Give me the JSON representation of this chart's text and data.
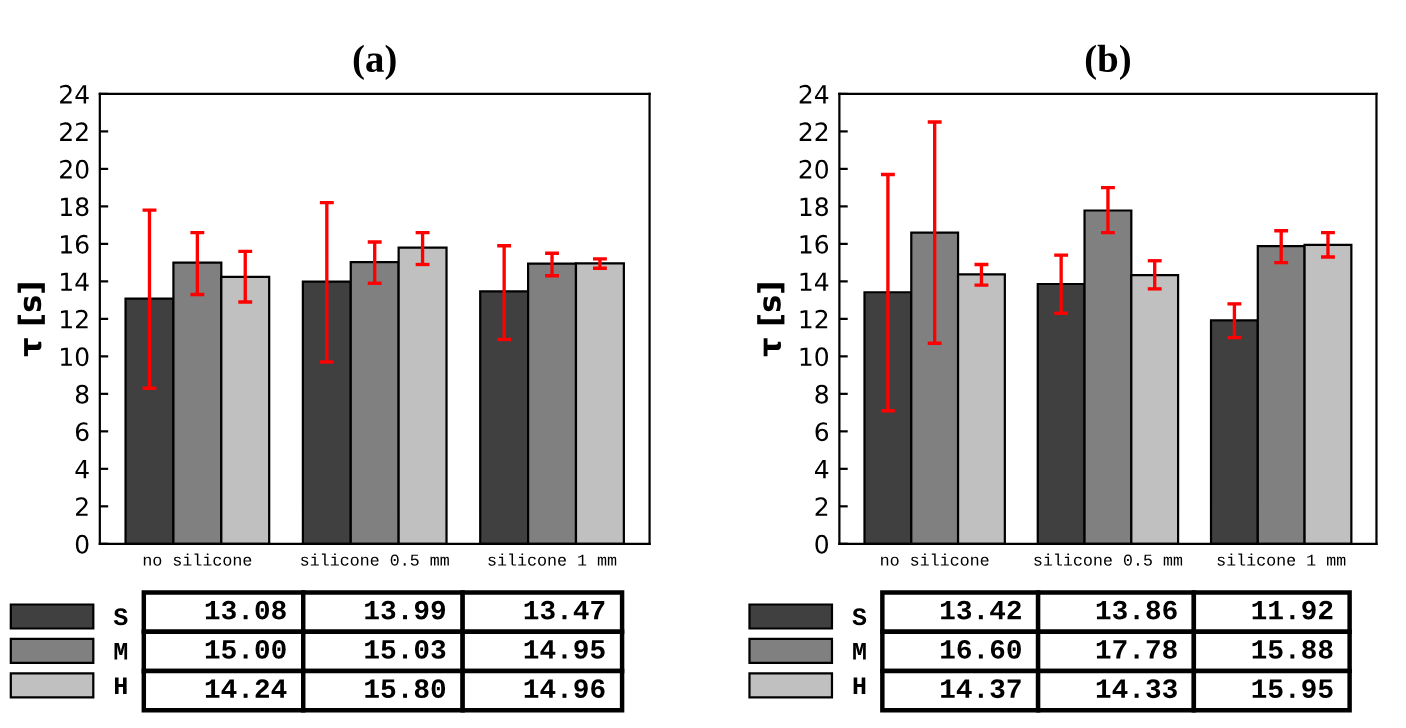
{
  "chart_data": [
    {
      "type": "bar",
      "title": "(a)",
      "ylabel": "τ [s]",
      "categories": [
        "no silicone",
        "silicone 0.5 mm",
        "silicone 1 mm"
      ],
      "series": [
        {
          "name": "S",
          "color": "#404040",
          "values": [
            13.08,
            13.99,
            13.47
          ],
          "value_labels": [
            "13.08",
            "13.99",
            "13.47"
          ],
          "errors": [
            [
              8.3,
              17.8
            ],
            [
              9.7,
              18.2
            ],
            [
              10.9,
              15.9
            ]
          ]
        },
        {
          "name": "M",
          "color": "#808080",
          "values": [
            15.0,
            15.03,
            14.95
          ],
          "value_labels": [
            "15.00",
            "15.03",
            "14.95"
          ],
          "errors": [
            [
              13.3,
              16.6
            ],
            [
              13.9,
              16.1
            ],
            [
              14.3,
              15.5
            ]
          ]
        },
        {
          "name": "H",
          "color": "#c0c0c0",
          "values": [
            14.24,
            15.8,
            14.96
          ],
          "value_labels": [
            "14.24",
            "15.80",
            "14.96"
          ],
          "errors": [
            [
              12.9,
              15.6
            ],
            [
              14.9,
              16.6
            ],
            [
              14.7,
              15.2
            ]
          ]
        }
      ],
      "ylim": [
        0,
        24
      ],
      "yticks": [
        0,
        2,
        4,
        6,
        8,
        10,
        12,
        14,
        16,
        18,
        20,
        22,
        24
      ],
      "legend": "bottom left",
      "grid": false
    },
    {
      "type": "bar",
      "title": "(b)",
      "ylabel": "τ [s]",
      "categories": [
        "no silicone",
        "silicone 0.5 mm",
        "silicone 1 mm"
      ],
      "series": [
        {
          "name": "S",
          "color": "#404040",
          "values": [
            13.42,
            13.86,
            11.92
          ],
          "value_labels": [
            "13.42",
            "13.86",
            "11.92"
          ],
          "errors": [
            [
              7.1,
              19.7
            ],
            [
              12.3,
              15.4
            ],
            [
              11.0,
              12.8
            ]
          ]
        },
        {
          "name": "M",
          "color": "#808080",
          "values": [
            16.6,
            17.78,
            15.88
          ],
          "value_labels": [
            "16.60",
            "17.78",
            "15.88"
          ],
          "errors": [
            [
              10.7,
              22.5
            ],
            [
              16.6,
              19.0
            ],
            [
              15.0,
              16.7
            ]
          ]
        },
        {
          "name": "H",
          "color": "#c0c0c0",
          "values": [
            14.37,
            14.33,
            15.95
          ],
          "value_labels": [
            "14.37",
            "14.33",
            "15.95"
          ],
          "errors": [
            [
              13.8,
              14.9
            ],
            [
              13.6,
              15.1
            ],
            [
              15.3,
              16.6
            ]
          ]
        }
      ],
      "ylim": [
        0,
        24
      ],
      "yticks": [
        0,
        2,
        4,
        6,
        8,
        10,
        12,
        14,
        16,
        18,
        20,
        22,
        24
      ],
      "legend": "bottom left",
      "grid": false
    }
  ]
}
